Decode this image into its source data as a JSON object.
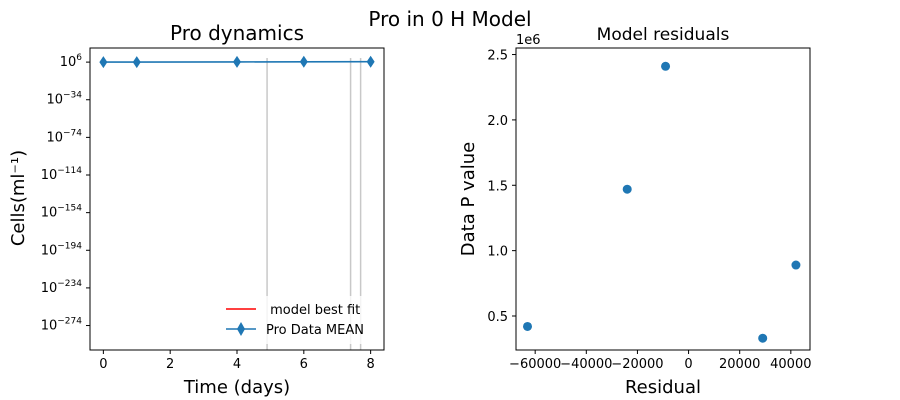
{
  "suptitle": "Pro in 0 H Model",
  "chart_data": [
    {
      "type": "line",
      "title": "Pro dynamics",
      "xlabel": "Time (days)",
      "ylabel": "Cells(ml⁻¹)",
      "y_scale": "log",
      "xlim": [
        -0.4,
        8.4
      ],
      "ylim_log10": [
        -300,
        21
      ],
      "xticks": [
        0,
        2,
        4,
        6,
        8
      ],
      "yticks_log10": [
        6,
        -34,
        -74,
        -114,
        -154,
        -194,
        -234,
        -274
      ],
      "series": [
        {
          "name": "Pro Data MEAN",
          "color": "#1f77b4",
          "marker": "diamond",
          "x": [
            0,
            1,
            4,
            6,
            8
          ],
          "y_log10": [
            6,
            6.05,
            6.2,
            6.35,
            6.4
          ]
        },
        {
          "name": " model best fit",
          "color": "#ff0000",
          "x": [],
          "y_log10": []
        }
      ],
      "error_bar_x": [
        4.9,
        7.4,
        7.7
      ],
      "error_bar_color": "#c8c8c8",
      "legend_position": "lower-right",
      "grid": false
    },
    {
      "type": "scatter",
      "title": "Model residuals",
      "xlabel": "Residual",
      "ylabel": "Data P value",
      "offset_text": "1e6",
      "xlim": [
        -67500,
        47500
      ],
      "ylim": [
        0.24,
        2.55
      ],
      "xticks": [
        -60000,
        -40000,
        -20000,
        0,
        20000,
        40000
      ],
      "xtick_labels": [
        "−60000",
        "−40000",
        "−20000",
        "0",
        "20000",
        "40000"
      ],
      "yticks": [
        0.5,
        1.0,
        1.5,
        2.0,
        2.5
      ],
      "ytick_labels": [
        "0.5",
        "1.0",
        "1.5",
        "2.0",
        "2.5"
      ],
      "color": "#1f77b4",
      "x": [
        -63000,
        -24000,
        -9000,
        29000,
        42000
      ],
      "y": [
        0.42,
        1.47,
        2.41,
        0.33,
        0.89
      ],
      "grid": false
    }
  ]
}
